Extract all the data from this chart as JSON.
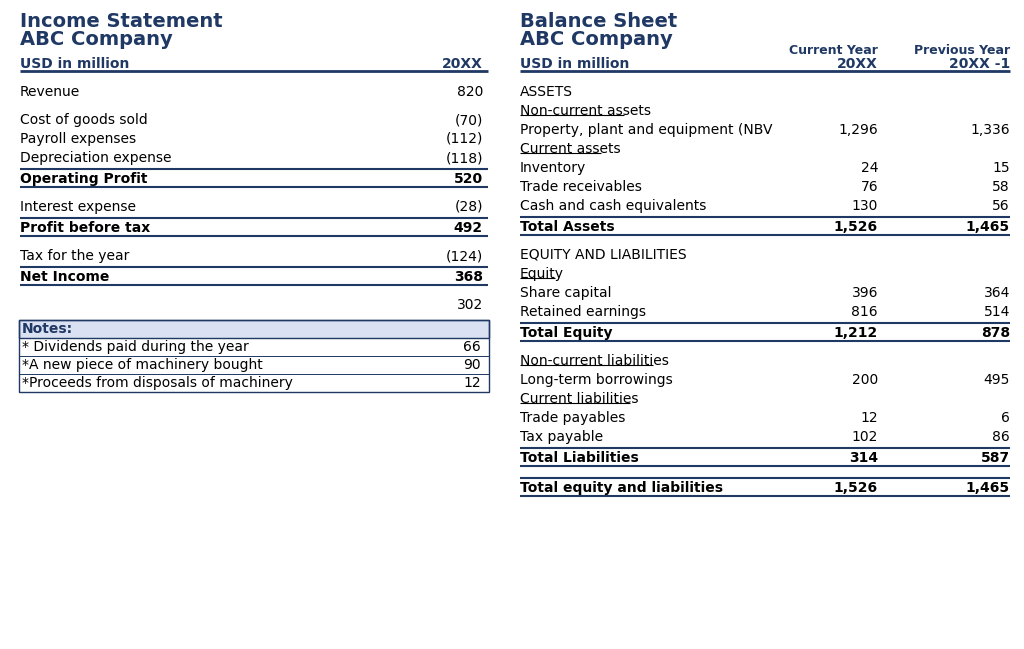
{
  "bg_color": "#ffffff",
  "dark_blue": "#1F3864",
  "light_blue_bg": "#D9E1F2",
  "income_statement": {
    "title_line1": "Income Statement",
    "title_line2": "ABC Company",
    "header_label": "USD in million",
    "header_value": "20XX",
    "rows": [
      {
        "label": "Revenue",
        "value": "820",
        "bold": false,
        "spacer_before": true,
        "line_above": false,
        "line_below": false
      },
      {
        "label": "Cost of goods sold",
        "value": "(70)",
        "bold": false,
        "spacer_before": true,
        "line_above": false,
        "line_below": false
      },
      {
        "label": "Payroll expenses",
        "value": "(112)",
        "bold": false,
        "spacer_before": false,
        "line_above": false,
        "line_below": false
      },
      {
        "label": "Depreciation expense",
        "value": "(118)",
        "bold": false,
        "spacer_before": false,
        "line_above": false,
        "line_below": false
      },
      {
        "label": "Operating Profit",
        "value": "520",
        "bold": true,
        "spacer_before": false,
        "line_above": true,
        "line_below": true
      },
      {
        "label": "Interest expense",
        "value": "(28)",
        "bold": false,
        "spacer_before": true,
        "line_above": false,
        "line_below": false
      },
      {
        "label": "Profit before tax",
        "value": "492",
        "bold": true,
        "spacer_before": false,
        "line_above": true,
        "line_below": true
      },
      {
        "label": "Tax for the year",
        "value": "(124)",
        "bold": false,
        "spacer_before": true,
        "line_above": false,
        "line_below": false
      },
      {
        "label": "Net Income",
        "value": "368",
        "bold": true,
        "spacer_before": false,
        "line_above": true,
        "line_below": true
      },
      {
        "label": "",
        "value": "302",
        "bold": false,
        "spacer_before": true,
        "line_above": false,
        "line_below": false
      }
    ],
    "notes_header": "Notes:",
    "notes": [
      {
        "label": "* Dividends paid during the year",
        "value": "66"
      },
      {
        "label": "*A new piece of machinery bought",
        "value": "90"
      },
      {
        "label": "*Proceeds from disposals of machinery",
        "value": "12"
      }
    ]
  },
  "balance_sheet": {
    "title_line1": "Balance Sheet",
    "title_line2": "ABC Company",
    "header_label": "USD in million",
    "header_col1": "Current Year",
    "header_col2": "Previous Year",
    "header_sub1": "20XX",
    "header_sub2": "20XX -1",
    "rows": [
      {
        "label": "ASSETS",
        "v1": "",
        "v2": "",
        "bold": false,
        "underline": false,
        "spacer_before": true,
        "line_above": false,
        "line_below": false
      },
      {
        "label": "Non-current assets",
        "v1": "",
        "v2": "",
        "bold": false,
        "underline": true,
        "spacer_before": false,
        "line_above": false,
        "line_below": false
      },
      {
        "label": "Property, plant and equipment (NBV",
        "v1": "1,296",
        "v2": "1,336",
        "bold": false,
        "underline": false,
        "spacer_before": false,
        "line_above": false,
        "line_below": false
      },
      {
        "label": "Current assets",
        "v1": "",
        "v2": "",
        "bold": false,
        "underline": true,
        "spacer_before": false,
        "line_above": false,
        "line_below": false
      },
      {
        "label": "Inventory",
        "v1": "24",
        "v2": "15",
        "bold": false,
        "underline": false,
        "spacer_before": false,
        "line_above": false,
        "line_below": false
      },
      {
        "label": "Trade receivables",
        "v1": "76",
        "v2": "58",
        "bold": false,
        "underline": false,
        "spacer_before": false,
        "line_above": false,
        "line_below": false
      },
      {
        "label": "Cash and cash equivalents",
        "v1": "130",
        "v2": "56",
        "bold": false,
        "underline": false,
        "spacer_before": false,
        "line_above": false,
        "line_below": false
      },
      {
        "label": "Total Assets",
        "v1": "1,526",
        "v2": "1,465",
        "bold": true,
        "underline": false,
        "spacer_before": false,
        "line_above": true,
        "line_below": true
      },
      {
        "label": "EQUITY AND LIABILITIES",
        "v1": "",
        "v2": "",
        "bold": false,
        "underline": false,
        "spacer_before": true,
        "line_above": false,
        "line_below": false
      },
      {
        "label": "Equity",
        "v1": "",
        "v2": "",
        "bold": false,
        "underline": true,
        "spacer_before": false,
        "line_above": false,
        "line_below": false
      },
      {
        "label": "Share capital",
        "v1": "396",
        "v2": "364",
        "bold": false,
        "underline": false,
        "spacer_before": false,
        "line_above": false,
        "line_below": false
      },
      {
        "label": "Retained earnings",
        "v1": "816",
        "v2": "514",
        "bold": false,
        "underline": false,
        "spacer_before": false,
        "line_above": false,
        "line_below": false
      },
      {
        "label": "Total Equity",
        "v1": "1,212",
        "v2": "878",
        "bold": true,
        "underline": false,
        "spacer_before": false,
        "line_above": true,
        "line_below": true
      },
      {
        "label": "Non-current liabilities",
        "v1": "",
        "v2": "",
        "bold": false,
        "underline": true,
        "spacer_before": true,
        "line_above": false,
        "line_below": false
      },
      {
        "label": "Long-term borrowings",
        "v1": "200",
        "v2": "495",
        "bold": false,
        "underline": false,
        "spacer_before": false,
        "line_above": false,
        "line_below": false
      },
      {
        "label": "Current liabilities",
        "v1": "",
        "v2": "",
        "bold": false,
        "underline": true,
        "spacer_before": false,
        "line_above": false,
        "line_below": false
      },
      {
        "label": "Trade payables",
        "v1": "12",
        "v2": "6",
        "bold": false,
        "underline": false,
        "spacer_before": false,
        "line_above": false,
        "line_below": false
      },
      {
        "label": "Tax payable",
        "v1": "102",
        "v2": "86",
        "bold": false,
        "underline": false,
        "spacer_before": false,
        "line_above": false,
        "line_below": false
      },
      {
        "label": "Total Liabilities",
        "v1": "314",
        "v2": "587",
        "bold": true,
        "underline": false,
        "spacer_before": false,
        "line_above": true,
        "line_below": true
      },
      {
        "label": "Total equity and liabilities",
        "v1": "1,526",
        "v2": "1,465",
        "bold": true,
        "underline": false,
        "spacer_before": true,
        "line_above": true,
        "line_below": true
      }
    ]
  }
}
